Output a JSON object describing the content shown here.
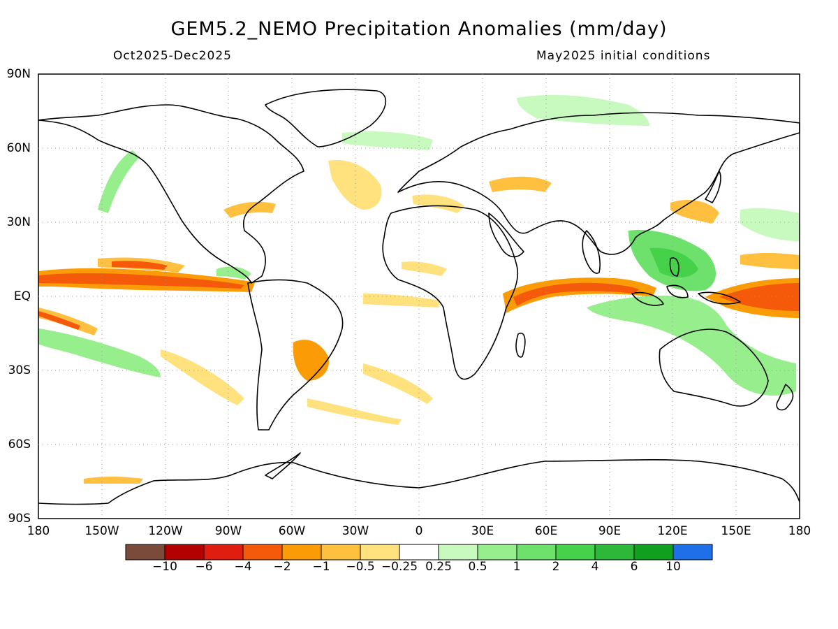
{
  "title": "GEM5.2_NEMO Precipitation Anomalies (mm/day)",
  "period": "Oct2025-Dec2025",
  "init": "May2025 initial conditions",
  "lat_ticks": [
    "90N",
    "60N",
    "30N",
    "EQ",
    "30S",
    "60S",
    "90S"
  ],
  "lon_ticks": [
    "180",
    "150W",
    "120W",
    "90W",
    "60W",
    "30W",
    "0",
    "30E",
    "60E",
    "90E",
    "120E",
    "150E",
    "180"
  ],
  "colorbar": {
    "colors": [
      "#7a4a3a",
      "#b30000",
      "#e01e10",
      "#f55a0a",
      "#fb9b05",
      "#ffc040",
      "#ffe27d",
      "#ffffff",
      "#c8fac0",
      "#96ee8c",
      "#6ee06c",
      "#46d14a",
      "#2eb83a",
      "#11a01e",
      "#1f6fe8"
    ],
    "labels": [
      "-10",
      "-6",
      "-4",
      "-2",
      "-1",
      "-0.5",
      "-0.25",
      "0.25",
      "0.5",
      "1",
      "2",
      "4",
      "6",
      "10"
    ]
  }
}
